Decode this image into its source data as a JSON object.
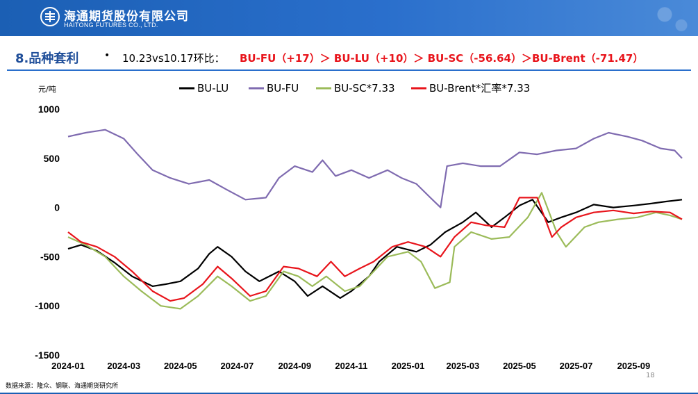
{
  "header": {
    "company_cn": "海通期货股份有限公司",
    "company_en": "HAITONG FUTURES CO., LTD.",
    "brand_color": "#1b5fb4"
  },
  "section": {
    "title": "8.品种套利",
    "bullet": "•",
    "summary_plain": "10.23vs10.17环比：",
    "summary_highlight": "BU-FU（+17）＞ BU-LU（+10）＞ BU-SC（-56.64）＞BU-Brent（-71.47）",
    "highlight_color": "#e8141b"
  },
  "footer": {
    "source": "数据来源：隆众、钢联、海通期货研究所",
    "page": "18"
  },
  "chart_data": {
    "type": "line",
    "ylabel": "元/吨",
    "ylim": [
      -1500,
      1000
    ],
    "yticks": [
      1000,
      500,
      0,
      -500,
      -1000,
      -1500
    ],
    "xlim": [
      "2024-01",
      "2025-10"
    ],
    "xticks": [
      "2024-01",
      "2024-03",
      "2024-05",
      "2024-07",
      "2024-09",
      "2024-11",
      "2025-01",
      "2025-03",
      "2025-05",
      "2025-07",
      "2025-09"
    ],
    "legend_position": "top",
    "grid": false,
    "series": [
      {
        "name": "BU-LU",
        "color": "#000000",
        "points": [
          [
            "2024-01-01",
            -420
          ],
          [
            "2024-01-15",
            -380
          ],
          [
            "2024-02-01",
            -440
          ],
          [
            "2024-02-20",
            -560
          ],
          [
            "2024-03-10",
            -700
          ],
          [
            "2024-04-01",
            -800
          ],
          [
            "2024-04-15",
            -780
          ],
          [
            "2024-05-01",
            -750
          ],
          [
            "2024-05-20",
            -620
          ],
          [
            "2024-06-01",
            -470
          ],
          [
            "2024-06-10",
            -400
          ],
          [
            "2024-06-25",
            -500
          ],
          [
            "2024-07-10",
            -650
          ],
          [
            "2024-07-25",
            -750
          ],
          [
            "2024-08-15",
            -650
          ],
          [
            "2024-09-01",
            -750
          ],
          [
            "2024-09-15",
            -900
          ],
          [
            "2024-10-01",
            -800
          ],
          [
            "2024-10-20",
            -920
          ],
          [
            "2024-11-01",
            -850
          ],
          [
            "2024-11-20",
            -700
          ],
          [
            "2024-12-01",
            -550
          ],
          [
            "2024-12-20",
            -400
          ],
          [
            "2025-01-10",
            -450
          ],
          [
            "2025-01-25",
            -380
          ],
          [
            "2025-02-10",
            -250
          ],
          [
            "2025-03-01",
            -150
          ],
          [
            "2025-03-15",
            -50
          ],
          [
            "2025-04-01",
            -200
          ],
          [
            "2025-04-15",
            -100
          ],
          [
            "2025-05-01",
            20
          ],
          [
            "2025-05-15",
            80
          ],
          [
            "2025-06-01",
            -150
          ],
          [
            "2025-06-15",
            -100
          ],
          [
            "2025-07-01",
            -50
          ],
          [
            "2025-07-20",
            30
          ],
          [
            "2025-08-10",
            0
          ],
          [
            "2025-09-01",
            20
          ],
          [
            "2025-09-20",
            40
          ],
          [
            "2025-10-05",
            60
          ],
          [
            "2025-10-23",
            80
          ]
        ]
      },
      {
        "name": "BU-FU",
        "color": "#7f6bb0",
        "points": [
          [
            "2024-01-01",
            720
          ],
          [
            "2024-01-20",
            760
          ],
          [
            "2024-02-10",
            790
          ],
          [
            "2024-03-01",
            700
          ],
          [
            "2024-03-15",
            550
          ],
          [
            "2024-04-01",
            380
          ],
          [
            "2024-04-20",
            300
          ],
          [
            "2024-05-10",
            240
          ],
          [
            "2024-06-01",
            280
          ],
          [
            "2024-06-20",
            180
          ],
          [
            "2024-07-10",
            80
          ],
          [
            "2024-08-01",
            100
          ],
          [
            "2024-08-15",
            300
          ],
          [
            "2024-09-01",
            420
          ],
          [
            "2024-09-20",
            360
          ],
          [
            "2024-10-01",
            480
          ],
          [
            "2024-10-15",
            320
          ],
          [
            "2024-11-01",
            380
          ],
          [
            "2024-11-20",
            300
          ],
          [
            "2024-12-10",
            380
          ],
          [
            "2024-12-25",
            300
          ],
          [
            "2025-01-10",
            240
          ],
          [
            "2025-01-25",
            100
          ],
          [
            "2025-02-05",
            0
          ],
          [
            "2025-02-12",
            420
          ],
          [
            "2025-03-01",
            450
          ],
          [
            "2025-03-20",
            420
          ],
          [
            "2025-04-10",
            420
          ],
          [
            "2025-05-01",
            560
          ],
          [
            "2025-05-20",
            540
          ],
          [
            "2025-06-10",
            580
          ],
          [
            "2025-07-01",
            600
          ],
          [
            "2025-07-20",
            700
          ],
          [
            "2025-08-05",
            760
          ],
          [
            "2025-08-25",
            720
          ],
          [
            "2025-09-10",
            680
          ],
          [
            "2025-09-30",
            600
          ],
          [
            "2025-10-15",
            580
          ],
          [
            "2025-10-23",
            500
          ]
        ]
      },
      {
        "name": "BU-SC*7.33",
        "color": "#9bbb59",
        "points": [
          [
            "2024-01-01",
            -300
          ],
          [
            "2024-01-20",
            -380
          ],
          [
            "2024-02-10",
            -500
          ],
          [
            "2024-03-01",
            -700
          ],
          [
            "2024-03-20",
            -850
          ],
          [
            "2024-04-10",
            -1000
          ],
          [
            "2024-05-01",
            -1030
          ],
          [
            "2024-05-20",
            -900
          ],
          [
            "2024-06-10",
            -700
          ],
          [
            "2024-06-25",
            -800
          ],
          [
            "2024-07-15",
            -950
          ],
          [
            "2024-08-01",
            -900
          ],
          [
            "2024-08-20",
            -650
          ],
          [
            "2024-09-05",
            -700
          ],
          [
            "2024-09-20",
            -800
          ],
          [
            "2024-10-05",
            -700
          ],
          [
            "2024-10-25",
            -850
          ],
          [
            "2024-11-10",
            -800
          ],
          [
            "2024-11-25",
            -650
          ],
          [
            "2024-12-10",
            -500
          ],
          [
            "2025-01-01",
            -450
          ],
          [
            "2025-01-15",
            -550
          ],
          [
            "2025-01-30",
            -820
          ],
          [
            "2025-02-15",
            -760
          ],
          [
            "2025-02-20",
            -400
          ],
          [
            "2025-03-10",
            -250
          ],
          [
            "2025-04-01",
            -320
          ],
          [
            "2025-04-20",
            -300
          ],
          [
            "2025-05-10",
            -100
          ],
          [
            "2025-05-25",
            150
          ],
          [
            "2025-06-10",
            -250
          ],
          [
            "2025-06-20",
            -400
          ],
          [
            "2025-07-10",
            -200
          ],
          [
            "2025-07-25",
            -150
          ],
          [
            "2025-08-15",
            -120
          ],
          [
            "2025-09-05",
            -100
          ],
          [
            "2025-09-25",
            -50
          ],
          [
            "2025-10-10",
            -80
          ],
          [
            "2025-10-23",
            -120
          ]
        ]
      },
      {
        "name": "BU-Brent*汇率*7.33",
        "color": "#e8141b",
        "points": [
          [
            "2024-01-01",
            -250
          ],
          [
            "2024-01-15",
            -350
          ],
          [
            "2024-02-01",
            -400
          ],
          [
            "2024-02-20",
            -500
          ],
          [
            "2024-03-10",
            -650
          ],
          [
            "2024-04-01",
            -850
          ],
          [
            "2024-04-20",
            -950
          ],
          [
            "2024-05-05",
            -920
          ],
          [
            "2024-05-25",
            -780
          ],
          [
            "2024-06-10",
            -600
          ],
          [
            "2024-06-25",
            -720
          ],
          [
            "2024-07-15",
            -900
          ],
          [
            "2024-08-01",
            -850
          ],
          [
            "2024-08-20",
            -600
          ],
          [
            "2024-09-05",
            -620
          ],
          [
            "2024-09-25",
            -700
          ],
          [
            "2024-10-10",
            -550
          ],
          [
            "2024-10-25",
            -700
          ],
          [
            "2024-11-10",
            -620
          ],
          [
            "2024-11-25",
            -550
          ],
          [
            "2024-12-15",
            -400
          ],
          [
            "2025-01-01",
            -350
          ],
          [
            "2025-01-20",
            -400
          ],
          [
            "2025-02-05",
            -500
          ],
          [
            "2025-02-20",
            -300
          ],
          [
            "2025-03-10",
            -150
          ],
          [
            "2025-03-25",
            -180
          ],
          [
            "2025-04-15",
            -200
          ],
          [
            "2025-05-01",
            100
          ],
          [
            "2025-05-20",
            100
          ],
          [
            "2025-06-05",
            -300
          ],
          [
            "2025-06-15",
            -200
          ],
          [
            "2025-07-01",
            -100
          ],
          [
            "2025-07-20",
            -50
          ],
          [
            "2025-08-10",
            -30
          ],
          [
            "2025-09-01",
            -60
          ],
          [
            "2025-09-20",
            -40
          ],
          [
            "2025-10-10",
            -50
          ],
          [
            "2025-10-23",
            -120
          ]
        ]
      }
    ]
  }
}
